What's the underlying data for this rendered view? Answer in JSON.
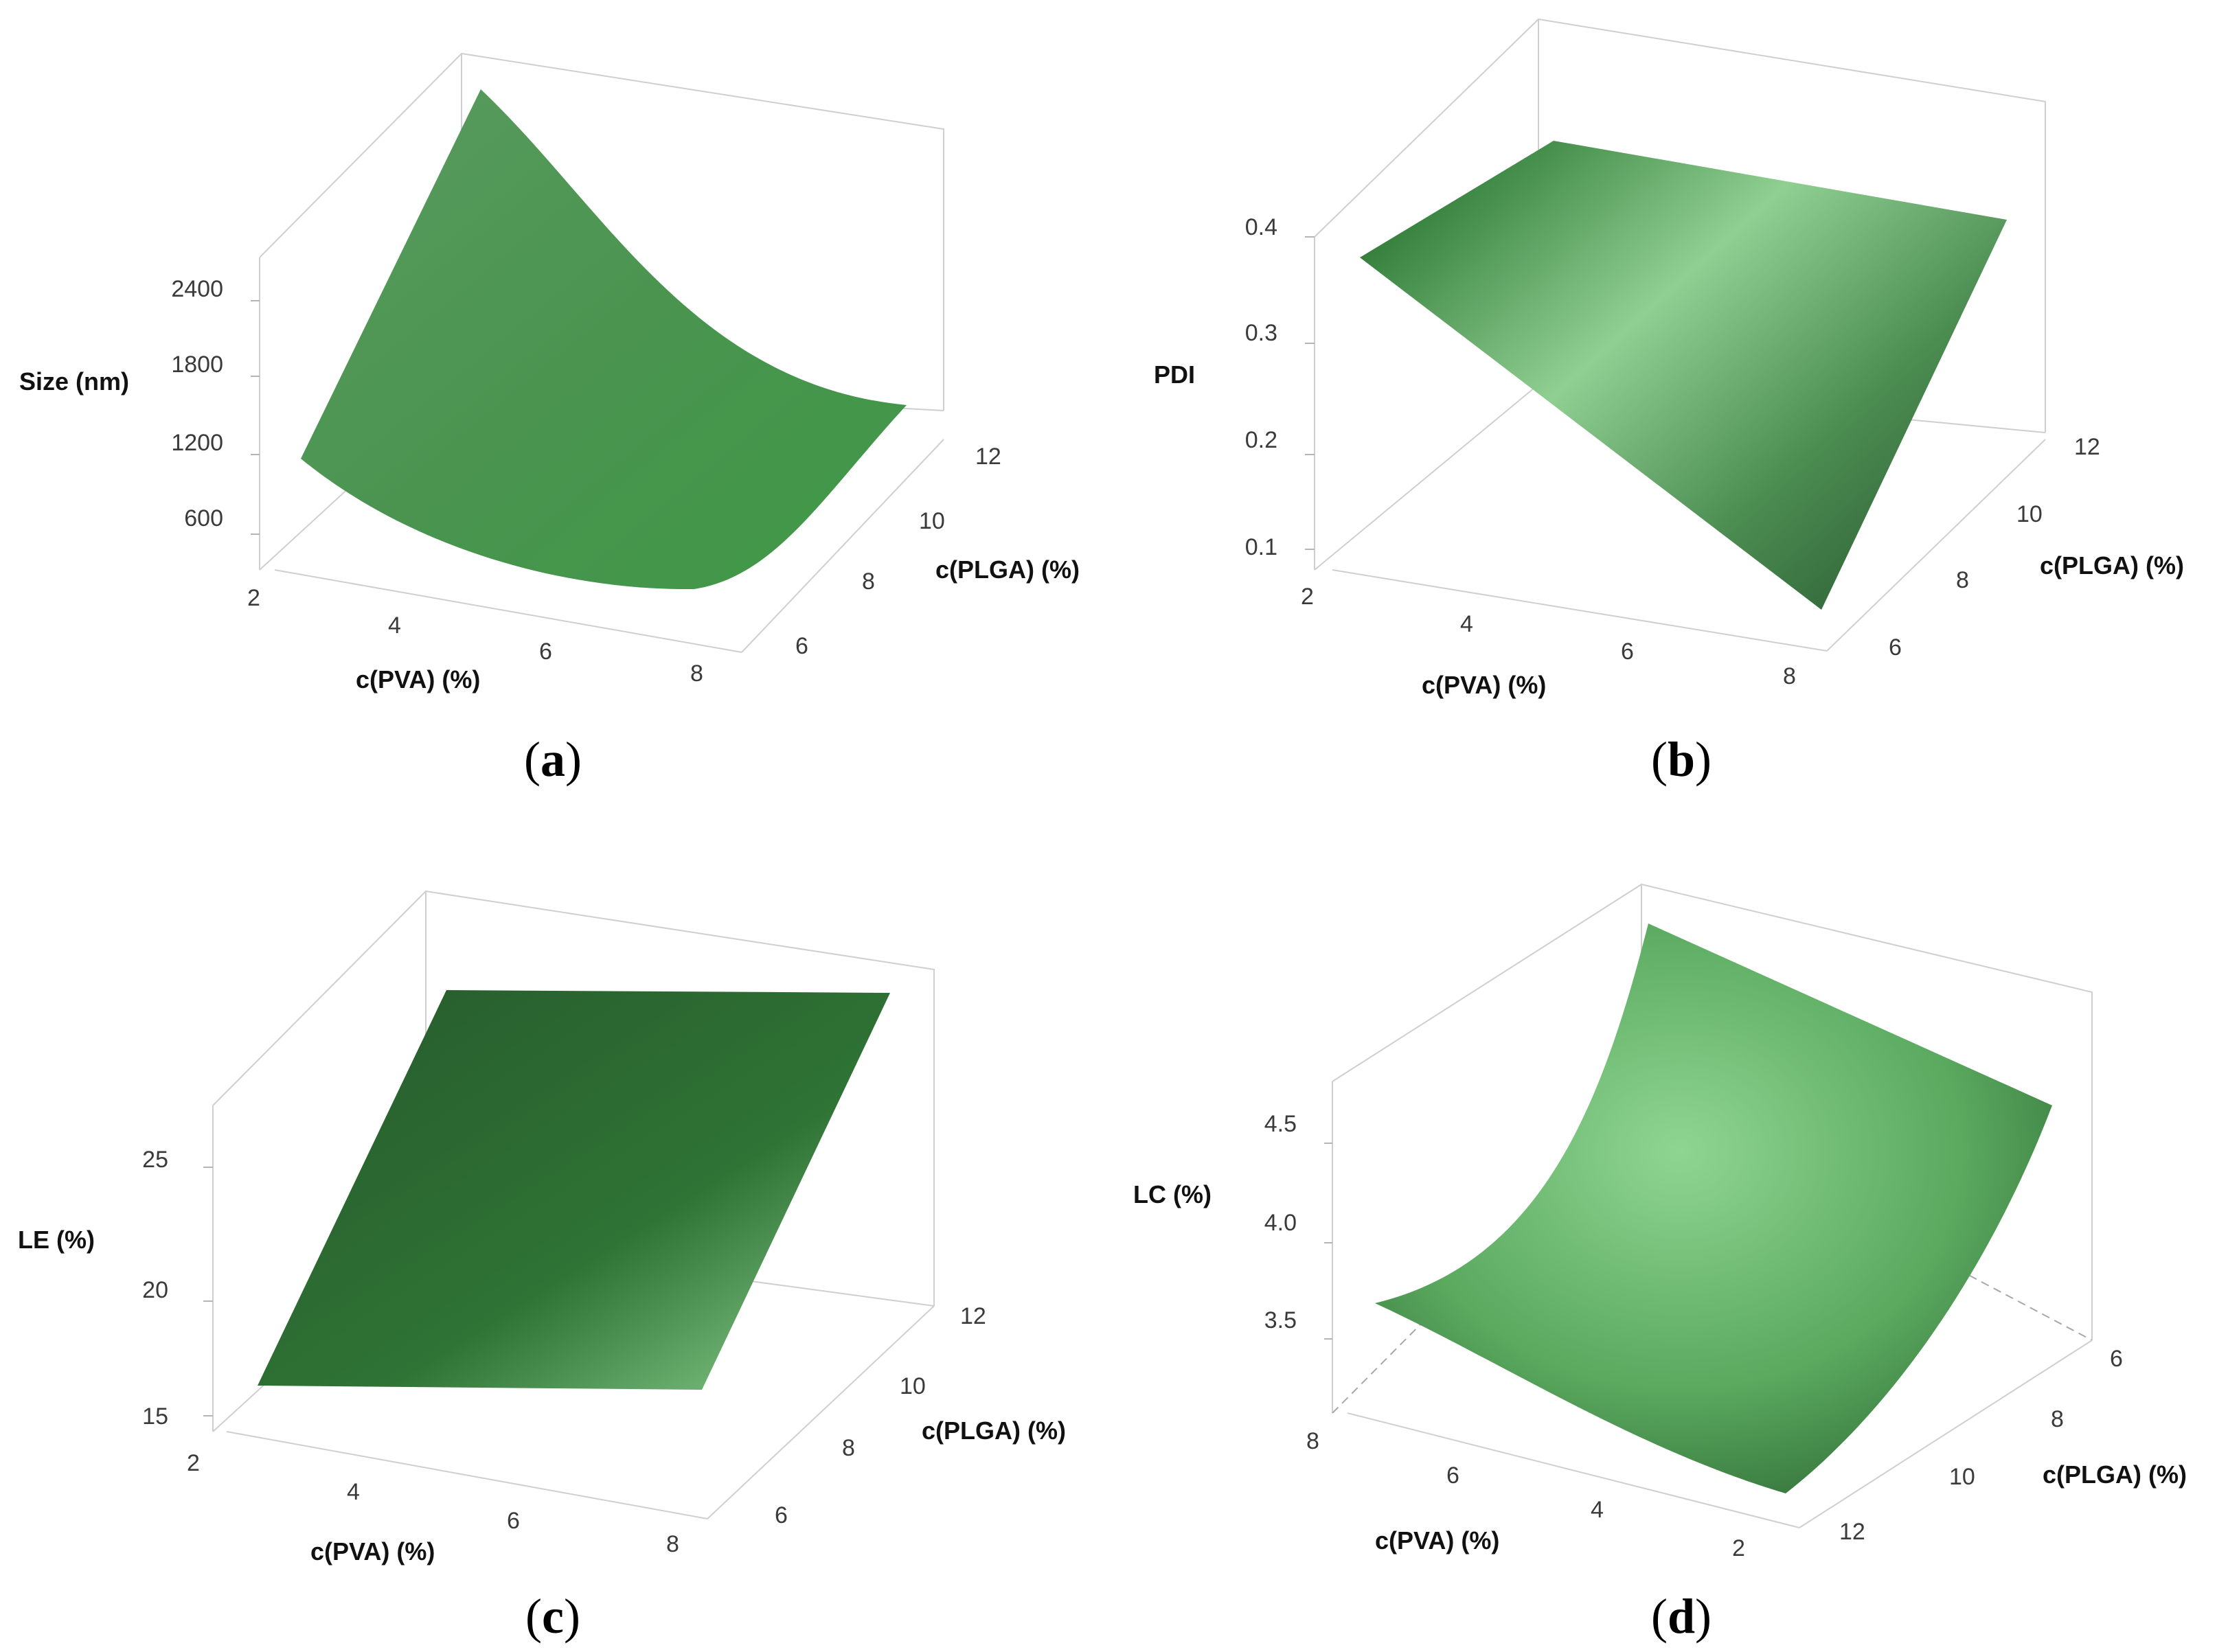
{
  "chart_data": [
    {
      "type": "surface",
      "panel": "(a)",
      "caption_letter": "a",
      "zlabel": "Size (nm)",
      "xlabel": "c(PVA) (%)",
      "ylabel": "c(PLGA) (%)",
      "x_ticks": [
        "2",
        "4",
        "6",
        "8"
      ],
      "y_ticks": [
        "6",
        "8",
        "10",
        "12"
      ],
      "z_ticks": [
        "600",
        "1200",
        "1800",
        "2400"
      ],
      "xlim": [
        2,
        8
      ],
      "ylim": [
        6,
        12
      ],
      "zlim": [
        300,
        2900
      ],
      "corners": [
        {
          "x": 2,
          "y": 6,
          "z": 1150
        },
        {
          "x": 8,
          "y": 6,
          "z": 420
        },
        {
          "x": 8,
          "y": 12,
          "z": 1450
        },
        {
          "x": 2,
          "y": 12,
          "z": 3100
        }
      ],
      "surface_color": "#4a9a50"
    },
    {
      "type": "surface",
      "panel": "(b)",
      "caption_letter": "b",
      "zlabel": "PDI",
      "xlabel": "c(PVA) (%)",
      "ylabel": "c(PLGA) (%)",
      "x_ticks": [
        "2",
        "4",
        "6",
        "8"
      ],
      "y_ticks": [
        "6",
        "8",
        "10",
        "12"
      ],
      "z_ticks": [
        "0.1",
        "0.2",
        "0.3",
        "0.4"
      ],
      "xlim": [
        2,
        8
      ],
      "ylim": [
        6,
        12
      ],
      "zlim": [
        0.05,
        0.45
      ],
      "corners": [
        {
          "x": 2,
          "y": 6,
          "z": 0.38
        },
        {
          "x": 8,
          "y": 6,
          "z": 0.1
        },
        {
          "x": 8,
          "y": 12,
          "z": 0.4
        },
        {
          "x": 2,
          "y": 12,
          "z": 0.42
        }
      ],
      "surface_color": "#3e8a46"
    },
    {
      "type": "surface",
      "panel": "(c)",
      "caption_letter": "c",
      "zlabel": "LE (%)",
      "xlabel": "c(PVA) (%)",
      "ylabel": "c(PLGA) (%)",
      "x_ticks": [
        "2",
        "4",
        "6",
        "8"
      ],
      "y_ticks": [
        "6",
        "8",
        "10",
        "12"
      ],
      "z_ticks": [
        "15",
        "20",
        "25"
      ],
      "xlim": [
        2,
        8
      ],
      "ylim": [
        6,
        12
      ],
      "zlim": [
        13,
        30
      ],
      "corners": [
        {
          "x": 2,
          "y": 6,
          "z": 17
        },
        {
          "x": 8,
          "y": 6,
          "z": 17
        },
        {
          "x": 8,
          "y": 12,
          "z": 29
        },
        {
          "x": 2,
          "y": 12,
          "z": 29
        }
      ],
      "surface_color": "#2f6e34"
    },
    {
      "type": "surface",
      "panel": "(d)",
      "caption_letter": "d",
      "zlabel": "LC (%)",
      "xlabel": "c(PVA) (%)",
      "ylabel": "c(PLGA) (%)",
      "x_ticks": [
        "8",
        "6",
        "4",
        "2"
      ],
      "y_ticks": [
        "12",
        "10",
        "8",
        "6"
      ],
      "z_ticks": [
        "3.5",
        "4.0",
        "4.5"
      ],
      "xlim": [
        8,
        2
      ],
      "ylim": [
        12,
        6
      ],
      "zlim": [
        3.2,
        5.0
      ],
      "corners": [
        {
          "x": 8,
          "y": 12,
          "z": 3.6
        },
        {
          "x": 2,
          "y": 12,
          "z": 3.2
        },
        {
          "x": 2,
          "y": 6,
          "z": 4.4
        },
        {
          "x": 8,
          "y": 6,
          "z": 5.0
        }
      ],
      "surface_color": "#5fae66"
    }
  ]
}
